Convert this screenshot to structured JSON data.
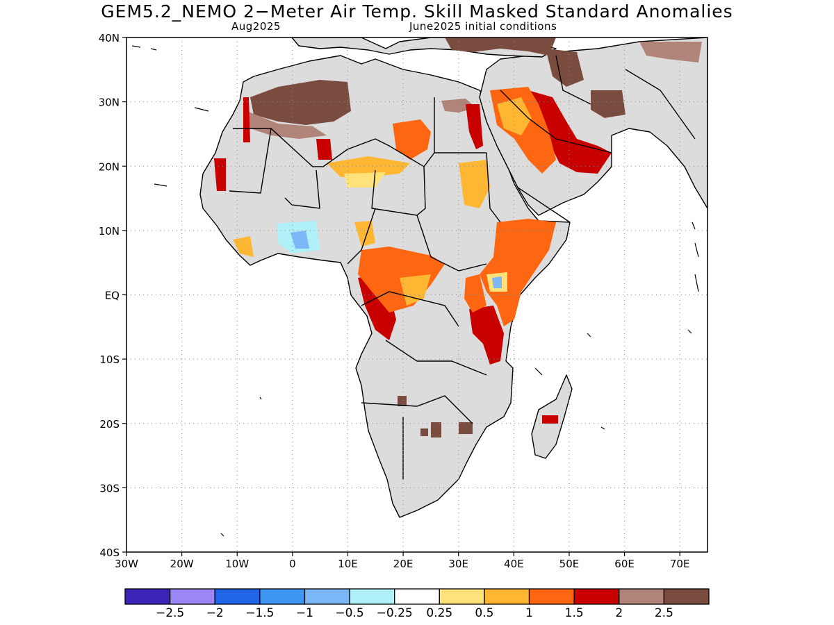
{
  "title": "GEM5.2_NEMO 2−Meter Air Temp. Skill Masked Standard Anomalies",
  "subtitle_left": "Aug2025",
  "subtitle_right": "June2025 initial conditions",
  "map": {
    "lat_range": [
      -40,
      40
    ],
    "lon_range": [
      -30,
      75
    ],
    "lat_ticks": [
      {
        "v": 40,
        "t": "40N"
      },
      {
        "v": 30,
        "t": "30N"
      },
      {
        "v": 20,
        "t": "20N"
      },
      {
        "v": 10,
        "t": "10N"
      },
      {
        "v": 0,
        "t": "EQ"
      },
      {
        "v": -10,
        "t": "10S"
      },
      {
        "v": -20,
        "t": "20S"
      },
      {
        "v": -30,
        "t": "30S"
      },
      {
        "v": -40,
        "t": "40S"
      }
    ],
    "lon_ticks": [
      {
        "v": -30,
        "t": "30W"
      },
      {
        "v": -20,
        "t": "20W"
      },
      {
        "v": -10,
        "t": "10W"
      },
      {
        "v": 0,
        "t": "0"
      },
      {
        "v": 10,
        "t": "10E"
      },
      {
        "v": 20,
        "t": "20E"
      },
      {
        "v": 30,
        "t": "30E"
      },
      {
        "v": 40,
        "t": "40E"
      },
      {
        "v": 50,
        "t": "50E"
      },
      {
        "v": 60,
        "t": "60E"
      },
      {
        "v": 70,
        "t": "70E"
      }
    ],
    "grid": true,
    "masked_color": "#dcdcdc"
  },
  "colorbar": {
    "colors": [
      "#3a25b8",
      "#9c86f5",
      "#2166e8",
      "#3d96f2",
      "#7cb8f7",
      "#b0f0f8",
      "#ffffff",
      "#ffe37a",
      "#ffb733",
      "#ff6611",
      "#c80000",
      "#b08479",
      "#7a4c40"
    ],
    "labels": [
      "−2.5",
      "−2",
      "−1.5",
      "−1",
      "−0.5",
      "−0.25",
      "0.25",
      "0.5",
      "1",
      "1.5",
      "2",
      "2.5"
    ]
  }
}
